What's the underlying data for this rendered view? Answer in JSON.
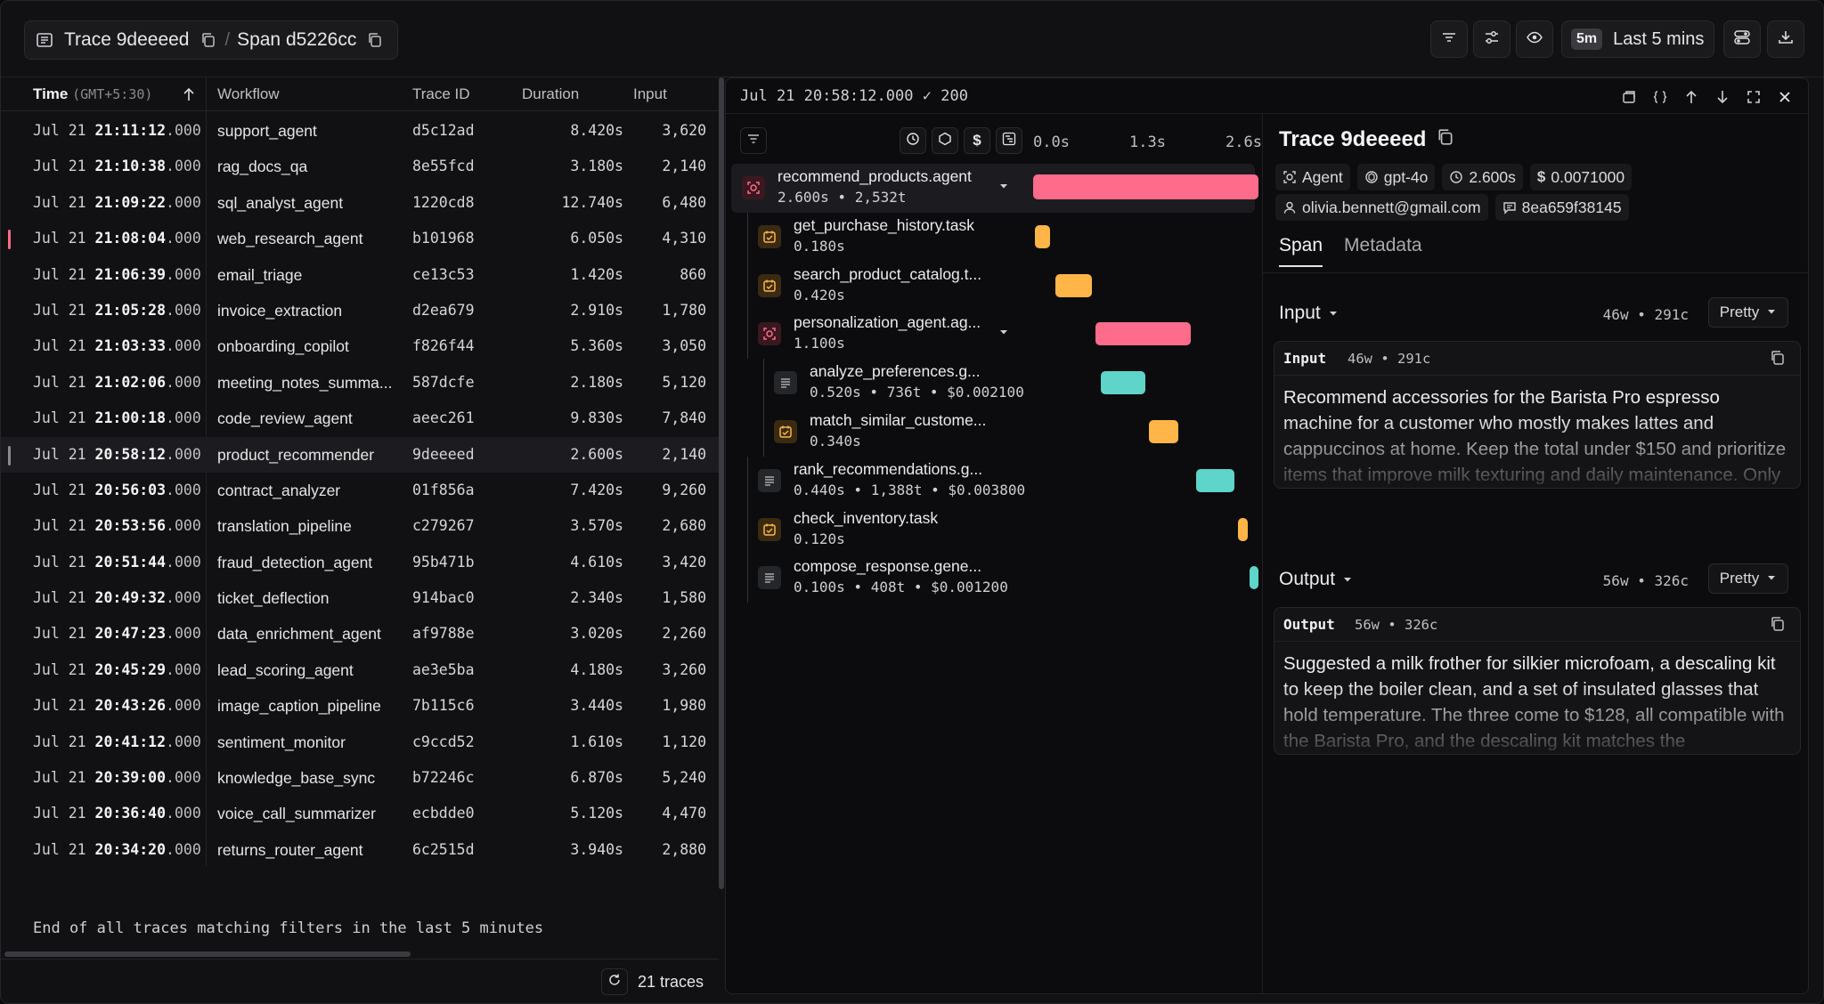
{
  "header": {
    "trace_label": "Trace 9deeeed",
    "separator": "/",
    "span_label": "Span d5226cc",
    "time_badge": "5m",
    "time_label": "Last 5 mins"
  },
  "table": {
    "columns": {
      "time": "Time",
      "time_tz": "(GMT+5:30)",
      "workflow": "Workflow",
      "trace_id": "Trace ID",
      "duration": "Duration",
      "input": "Input"
    },
    "rows": [
      {
        "date": "Jul 21 ",
        "hms": "21:11:12",
        "ms": ".000",
        "workflow": "support_agent",
        "trace_id": "d5c12ad",
        "duration": "8.420s",
        "input": "3,620",
        "marker": ""
      },
      {
        "date": "Jul 21 ",
        "hms": "21:10:38",
        "ms": ".000",
        "workflow": "rag_docs_qa",
        "trace_id": "8e55fcd",
        "duration": "3.180s",
        "input": "2,140",
        "marker": ""
      },
      {
        "date": "Jul 21 ",
        "hms": "21:09:22",
        "ms": ".000",
        "workflow": "sql_analyst_agent",
        "trace_id": "1220cd8",
        "duration": "12.740s",
        "input": "6,480",
        "marker": ""
      },
      {
        "date": "Jul 21 ",
        "hms": "21:08:04",
        "ms": ".000",
        "workflow": "web_research_agent",
        "trace_id": "b101968",
        "duration": "6.050s",
        "input": "4,310",
        "marker": "#ff6b8a"
      },
      {
        "date": "Jul 21 ",
        "hms": "21:06:39",
        "ms": ".000",
        "workflow": "email_triage",
        "trace_id": "ce13c53",
        "duration": "1.420s",
        "input": "860",
        "marker": ""
      },
      {
        "date": "Jul 21 ",
        "hms": "21:05:28",
        "ms": ".000",
        "workflow": "invoice_extraction",
        "trace_id": "d2ea679",
        "duration": "2.910s",
        "input": "1,780",
        "marker": ""
      },
      {
        "date": "Jul 21 ",
        "hms": "21:03:33",
        "ms": ".000",
        "workflow": "onboarding_copilot",
        "trace_id": "f826f44",
        "duration": "5.360s",
        "input": "3,050",
        "marker": ""
      },
      {
        "date": "Jul 21 ",
        "hms": "21:02:06",
        "ms": ".000",
        "workflow": "meeting_notes_summa...",
        "trace_id": "587dcfe",
        "duration": "2.180s",
        "input": "5,120",
        "marker": ""
      },
      {
        "date": "Jul 21 ",
        "hms": "21:00:18",
        "ms": ".000",
        "workflow": "code_review_agent",
        "trace_id": "aeec261",
        "duration": "9.830s",
        "input": "7,840",
        "marker": ""
      },
      {
        "date": "Jul 21 ",
        "hms": "20:58:12",
        "ms": ".000",
        "workflow": "product_recommender",
        "trace_id": "9deeeed",
        "duration": "2.600s",
        "input": "2,140",
        "marker": "#8a8a90",
        "selected": true
      },
      {
        "date": "Jul 21 ",
        "hms": "20:56:03",
        "ms": ".000",
        "workflow": "contract_analyzer",
        "trace_id": "01f856a",
        "duration": "7.420s",
        "input": "9,260",
        "marker": ""
      },
      {
        "date": "Jul 21 ",
        "hms": "20:53:56",
        "ms": ".000",
        "workflow": "translation_pipeline",
        "trace_id": "c279267",
        "duration": "3.570s",
        "input": "2,680",
        "marker": ""
      },
      {
        "date": "Jul 21 ",
        "hms": "20:51:44",
        "ms": ".000",
        "workflow": "fraud_detection_agent",
        "trace_id": "95b471b",
        "duration": "4.610s",
        "input": "3,420",
        "marker": ""
      },
      {
        "date": "Jul 21 ",
        "hms": "20:49:32",
        "ms": ".000",
        "workflow": "ticket_deflection",
        "trace_id": "914bac0",
        "duration": "2.340s",
        "input": "1,580",
        "marker": ""
      },
      {
        "date": "Jul 21 ",
        "hms": "20:47:23",
        "ms": ".000",
        "workflow": "data_enrichment_agent",
        "trace_id": "af9788e",
        "duration": "3.020s",
        "input": "2,260",
        "marker": ""
      },
      {
        "date": "Jul 21 ",
        "hms": "20:45:29",
        "ms": ".000",
        "workflow": "lead_scoring_agent",
        "trace_id": "ae3e5ba",
        "duration": "4.180s",
        "input": "3,260",
        "marker": ""
      },
      {
        "date": "Jul 21 ",
        "hms": "20:43:26",
        "ms": ".000",
        "workflow": "image_caption_pipeline",
        "trace_id": "7b115c6",
        "duration": "3.440s",
        "input": "1,980",
        "marker": ""
      },
      {
        "date": "Jul 21 ",
        "hms": "20:41:12",
        "ms": ".000",
        "workflow": "sentiment_monitor",
        "trace_id": "c9ccd52",
        "duration": "1.610s",
        "input": "1,120",
        "marker": ""
      },
      {
        "date": "Jul 21 ",
        "hms": "20:39:00",
        "ms": ".000",
        "workflow": "knowledge_base_sync",
        "trace_id": "b72246c",
        "duration": "6.870s",
        "input": "5,240",
        "marker": ""
      },
      {
        "date": "Jul 21 ",
        "hms": "20:36:40",
        "ms": ".000",
        "workflow": "voice_call_summarizer",
        "trace_id": "ecbdde0",
        "duration": "5.120s",
        "input": "4,470",
        "marker": ""
      },
      {
        "date": "Jul 21 ",
        "hms": "20:34:20",
        "ms": ".000",
        "workflow": "returns_router_agent",
        "trace_id": "6c2515d",
        "duration": "3.940s",
        "input": "2,880",
        "marker": ""
      }
    ],
    "end_note": "End of all traces matching filters in the last 5 minutes",
    "footer_count": "21 traces"
  },
  "trace_panel": {
    "timestamp": "Jul 21 20:58:12.000",
    "status_check": "✓",
    "status_code": "200",
    "axis_labels": [
      "0.0s",
      "1.3s",
      "2.6s"
    ],
    "total_duration_s": 2.6,
    "spans": [
      {
        "name": "recommend_products.agent",
        "meta": "2.600s • 2,532t",
        "kind": "agent",
        "depth": 0,
        "start_s": 0.0,
        "duration_s": 2.6,
        "color": "#ff6b8a",
        "collapsible": true,
        "active": true
      },
      {
        "name": "get_purchase_history.task",
        "meta": "0.180s",
        "kind": "task",
        "depth": 1,
        "start_s": 0.02,
        "duration_s": 0.18,
        "color": "#ffb547",
        "collapsible": false
      },
      {
        "name": "search_product_catalog.t...",
        "meta": "0.420s",
        "kind": "task",
        "depth": 1,
        "start_s": 0.26,
        "duration_s": 0.42,
        "color": "#ffb547",
        "collapsible": false
      },
      {
        "name": "personalization_agent.ag...",
        "meta": "1.100s",
        "kind": "agent",
        "depth": 1,
        "start_s": 0.72,
        "duration_s": 1.1,
        "color": "#ff6b8a",
        "collapsible": true
      },
      {
        "name": "analyze_preferences.g...",
        "meta": "0.520s • 736t • $0.002100",
        "kind": "generation",
        "depth": 2,
        "start_s": 0.78,
        "duration_s": 0.52,
        "color": "#5fd4c9",
        "collapsible": false
      },
      {
        "name": "match_similar_custome...",
        "meta": "0.340s",
        "kind": "task",
        "depth": 2,
        "start_s": 1.34,
        "duration_s": 0.34,
        "color": "#ffb547",
        "collapsible": false
      },
      {
        "name": "rank_recommendations.g...",
        "meta": "0.440s • 1,388t • $0.003800",
        "kind": "generation",
        "depth": 1,
        "start_s": 1.88,
        "duration_s": 0.44,
        "color": "#5fd4c9",
        "collapsible": false
      },
      {
        "name": "check_inventory.task",
        "meta": "0.120s",
        "kind": "task",
        "depth": 1,
        "start_s": 2.36,
        "duration_s": 0.12,
        "color": "#ffb547",
        "collapsible": false
      },
      {
        "name": "compose_response.gene...",
        "meta": "0.100s • 408t • $0.001200",
        "kind": "generation",
        "depth": 1,
        "start_s": 2.5,
        "duration_s": 0.1,
        "color": "#5fd4c9",
        "collapsible": false
      }
    ]
  },
  "detail": {
    "title": "Trace 9deeeed",
    "chips_row1": [
      {
        "icon": "agent-icon",
        "label": "Agent"
      },
      {
        "icon": "model-icon",
        "label": "gpt-4o"
      },
      {
        "icon": "clock-icon",
        "label": "2.600s"
      },
      {
        "icon": "dollar-icon",
        "label": "0.0071000"
      }
    ],
    "chips_row2": [
      {
        "icon": "user-icon",
        "label": "olivia.bennett@gmail.com"
      },
      {
        "icon": "message-icon",
        "label": "8ea659f38145"
      }
    ],
    "tabs": [
      "Span",
      "Metadata"
    ],
    "input": {
      "section_title": "Input",
      "stats": "46w • 291c",
      "format": "Pretty",
      "card_title": "Input",
      "card_stats": "46w • 291c",
      "text": "Recommend accessories for the Barista Pro espresso machine for a customer who mostly makes lattes and cappuccinos at home. Keep the total under $150 and prioritize items that improve milk texturing and daily maintenance. Only suggest things that are in stock and compatible with the machine."
    },
    "output": {
      "section_title": "Output",
      "stats": "56w • 326c",
      "format": "Pretty",
      "card_title": "Output",
      "card_stats": "56w • 326c",
      "text": "Suggested a milk frother for silkier microfoam, a descaling kit to keep the boiler clean, and a set of insulated glasses that hold temperature. The three come to $128, all compatible with the Barista Pro, and the descaling kit matches the recommended two month cleaning cycle. Every item is in stock and ships within two days."
    }
  },
  "colors": {
    "agent": "#ff6b8a",
    "task": "#ffb547",
    "generation": "#5fd4c9"
  }
}
